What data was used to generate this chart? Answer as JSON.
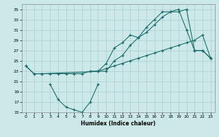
{
  "xlabel": "Humidex (Indice chaleur)",
  "bg_color": "#cce8e8",
  "grid_color": "#aacece",
  "line_color": "#1a6b6b",
  "xlim": [
    -0.5,
    23.5
  ],
  "ylim": [
    15,
    36
  ],
  "yticks": [
    15,
    17,
    19,
    21,
    23,
    25,
    27,
    29,
    31,
    33,
    35
  ],
  "xticks": [
    0,
    1,
    2,
    3,
    4,
    5,
    6,
    7,
    8,
    9,
    10,
    11,
    12,
    13,
    14,
    15,
    16,
    17,
    18,
    19,
    20,
    21,
    22,
    23
  ],
  "series": [
    {
      "x": [
        0,
        1,
        2,
        10,
        11,
        12,
        13,
        14,
        15,
        16,
        17,
        18,
        19,
        20,
        21,
        22,
        23
      ],
      "y": [
        24,
        22.5,
        22.5,
        23,
        25,
        26,
        28,
        29.5,
        30.5,
        32,
        33.5,
        34.5,
        34.5,
        35,
        27,
        27,
        25.5
      ]
    },
    {
      "x": [
        3,
        4,
        5,
        6,
        7,
        8,
        9
      ],
      "y": [
        20.5,
        17.5,
        16,
        15.5,
        15,
        17,
        20.5
      ]
    },
    {
      "x": [
        0,
        1,
        2,
        3,
        4,
        5,
        6,
        7,
        8,
        9,
        10,
        11,
        12,
        13,
        14,
        15,
        16,
        17,
        18,
        19,
        20,
        21,
        22,
        23
      ],
      "y": [
        24,
        22.5,
        22.5,
        22.5,
        22.5,
        22.5,
        22.5,
        22.5,
        23,
        23,
        23.5,
        24,
        24.5,
        25,
        25.5,
        26,
        26.5,
        27,
        27.5,
        28,
        28.5,
        29,
        30,
        25.5
      ]
    },
    {
      "x": [
        9,
        10,
        11,
        12,
        13,
        14,
        15,
        16,
        17,
        18,
        19,
        20,
        21,
        22,
        23
      ],
      "y": [
        23,
        24.5,
        27.5,
        28.5,
        30,
        29.5,
        31.5,
        33,
        34.5,
        34.5,
        35,
        31,
        27,
        27,
        25.5
      ]
    }
  ]
}
